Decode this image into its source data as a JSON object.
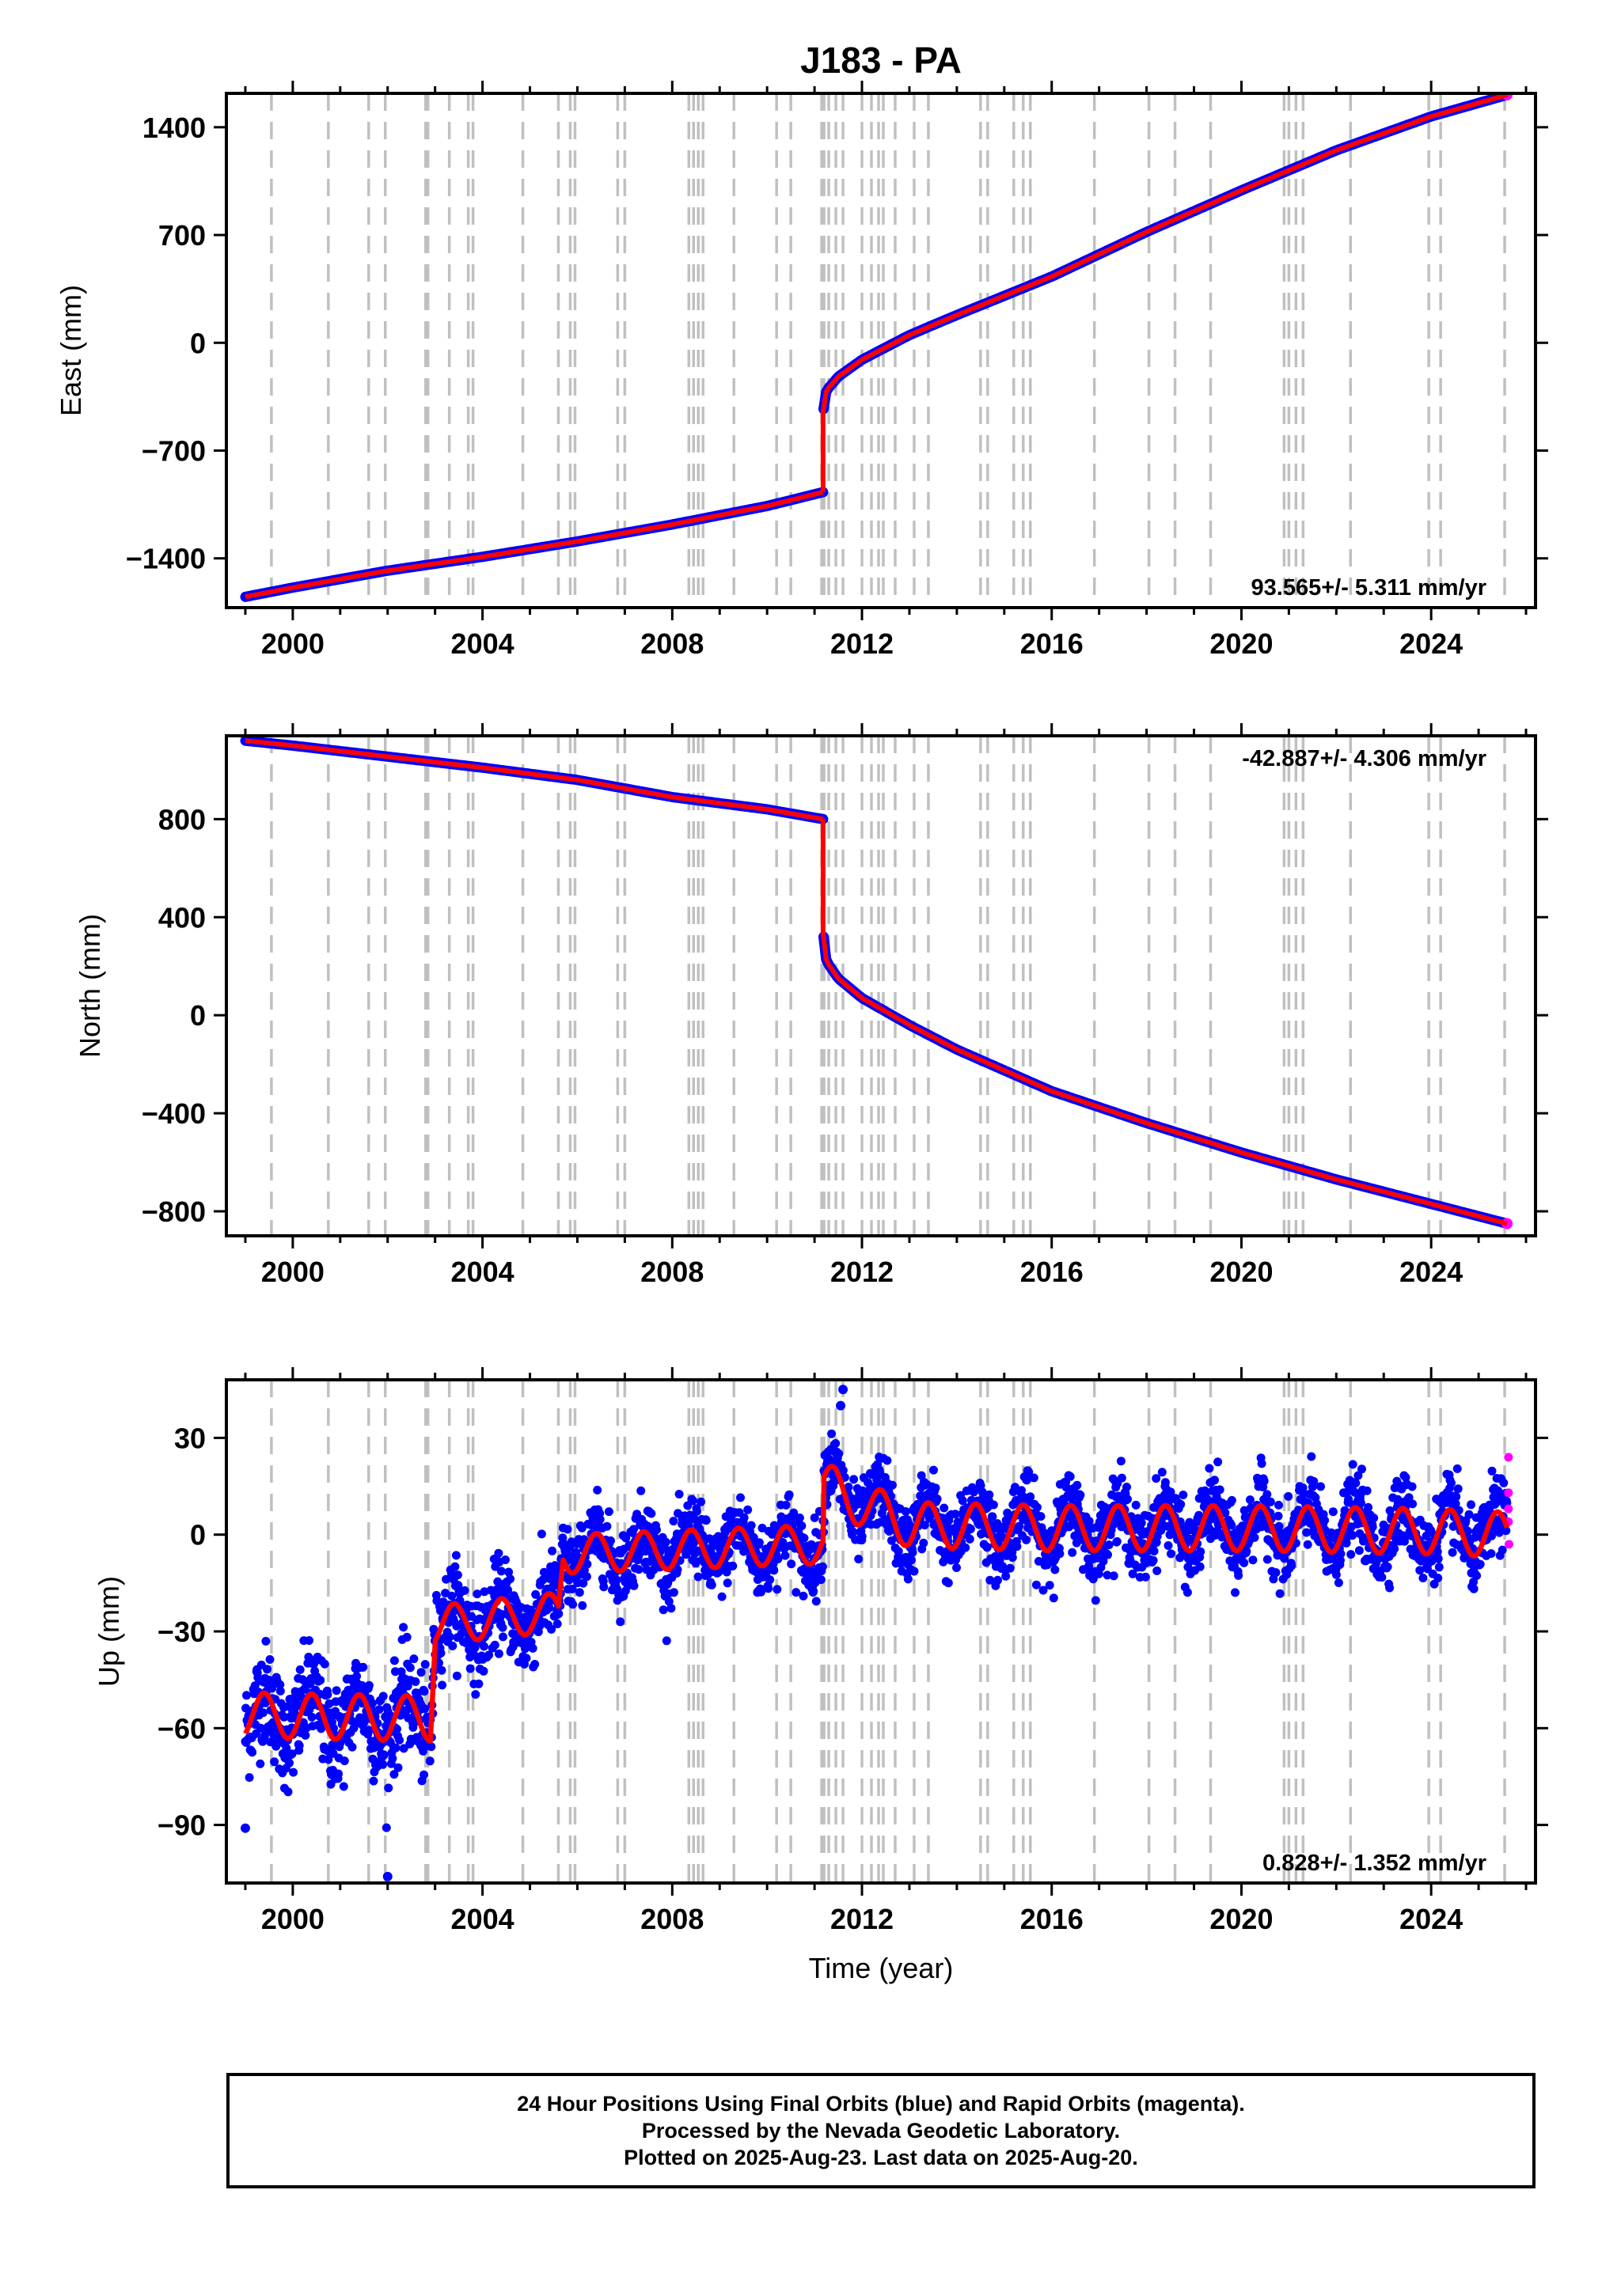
{
  "title": "J183 - PA",
  "time_label": "Time (year)",
  "footer": {
    "line1": "24 Hour Positions Using Final Orbits (blue) and Rapid Orbits (magenta).",
    "line2": "Processed by the Nevada Geodetic Laboratory.",
    "line3": "Plotted on 2025-Aug-23. Last data on 2025-Aug-20."
  },
  "colors": {
    "final_orbits": "#0000ff",
    "rapid_orbits": "#ff00ff",
    "model_fit": "#ff0000",
    "event_lines": "#c0c0c0"
  },
  "chart_data": [
    {
      "type": "scatter",
      "ylabel": "East (mm)",
      "xlabel": "",
      "xlim": [
        1998.6,
        2026.2
      ],
      "ylim": [
        -1720,
        1620
      ],
      "x_ticks": [
        2000,
        2004,
        2008,
        2012,
        2016,
        2020,
        2024
      ],
      "y_ticks": [
        -1400,
        -700,
        0,
        700,
        1400
      ],
      "y_tick_labels": [
        "−1400",
        "−700",
        "0",
        "700",
        "1400"
      ],
      "rate_label": "93.565+/- 5.311 mm/yr",
      "rate_label_position": "bottom-right",
      "series": [
        {
          "values_x": [
            1999.0,
            2000.0,
            2002.0,
            2004.0,
            2006.0,
            2008.0,
            2010.0,
            2011.18
          ],
          "values_y": [
            -1650,
            -1590,
            -1480,
            -1390,
            -1290,
            -1180,
            -1060,
            -970
          ]
        },
        {
          "values_x": [
            2011.19,
            2011.25,
            2011.5,
            2012.0,
            2013.0,
            2014.0,
            2016.0,
            2018.0,
            2020.0,
            2022.0,
            2024.0,
            2025.6
          ],
          "values_y": [
            -430,
            -310,
            -220,
            -110,
            50,
            180,
            430,
            720,
            990,
            1250,
            1470,
            1610
          ]
        }
      ],
      "grid": false
    },
    {
      "type": "scatter",
      "ylabel": "North (mm)",
      "xlabel": "",
      "xlim": [
        1998.6,
        2026.2
      ],
      "ylim": [
        -900,
        1140
      ],
      "x_ticks": [
        2000,
        2004,
        2008,
        2012,
        2016,
        2020,
        2024
      ],
      "y_ticks": [
        -800,
        -400,
        0,
        400,
        800
      ],
      "y_tick_labels": [
        "−800",
        "−400",
        "0",
        "400",
        "800"
      ],
      "rate_label": "-42.887+/- 4.306 mm/yr",
      "rate_label_position": "top-right",
      "series": [
        {
          "values_x": [
            1999.0,
            2000.0,
            2002.0,
            2004.0,
            2006.0,
            2008.0,
            2010.0,
            2011.18
          ],
          "values_y": [
            1120,
            1100,
            1055,
            1010,
            960,
            890,
            840,
            800
          ]
        },
        {
          "values_x": [
            2011.19,
            2011.25,
            2011.5,
            2012.0,
            2013.0,
            2014.0,
            2016.0,
            2018.0,
            2020.0,
            2022.0,
            2024.0,
            2025.6
          ],
          "values_y": [
            320,
            220,
            150,
            70,
            -40,
            -140,
            -310,
            -440,
            -560,
            -670,
            -770,
            -850
          ]
        }
      ],
      "grid": false
    },
    {
      "type": "scatter",
      "ylabel": "Up (mm)",
      "xlabel": "Time (year)",
      "xlim": [
        1998.6,
        2026.2
      ],
      "ylim": [
        -108,
        48
      ],
      "x_ticks": [
        2000,
        2004,
        2008,
        2012,
        2016,
        2020,
        2024
      ],
      "y_ticks": [
        -90,
        -60,
        -30,
        0,
        30
      ],
      "y_tick_labels": [
        "−90",
        "−60",
        "−30",
        "0",
        "30"
      ],
      "rate_label": "0.828+/- 1.352 mm/yr",
      "rate_label_position": "bottom-right",
      "series": [
        {
          "values_x": [
            1999.0,
            2002.9,
            2003.0,
            2005.6,
            2005.7,
            2011.18,
            2011.2,
            2011.6,
            2013.0,
            2016.0,
            2020.0,
            2024.0,
            2025.5
          ],
          "values_y": [
            -56,
            -57,
            -28,
            -24,
            -6,
            -3,
            16,
            12,
            3,
            2,
            2,
            1,
            0
          ]
        }
      ],
      "rapid_points": {
        "values_x": [
          2025.63,
          2025.63,
          2025.63,
          2025.63,
          2025.64
        ],
        "values_y": [
          24,
          13,
          8,
          4,
          -3
        ]
      },
      "outliers": {
        "values_x": [
          1999.0,
          2002.0,
          2011.6,
          2011.55
        ],
        "values_y": [
          -91,
          -106,
          45,
          40
        ]
      },
      "grid": false
    }
  ],
  "event_lines_x": [
    1999.55,
    2000.75,
    2001.6,
    2001.95,
    2002.8,
    2002.85,
    2003.3,
    2003.7,
    2003.8,
    2004.85,
    2005.6,
    2005.85,
    2005.95,
    2006.85,
    2007.0,
    2008.35,
    2008.45,
    2008.55,
    2008.65,
    2009.3,
    2010.2,
    2010.5,
    2011.15,
    2011.2,
    2011.3,
    2011.45,
    2011.6,
    2012.0,
    2012.2,
    2012.35,
    2012.45,
    2012.7,
    2013.1,
    2013.4,
    2014.5,
    2014.65,
    2015.2,
    2015.4,
    2015.55,
    2016.9,
    2018.05,
    2018.6,
    2019.35,
    2020.9,
    2021.0,
    2021.15,
    2021.3,
    2022.3,
    2023.95,
    2024.2,
    2025.55
  ]
}
